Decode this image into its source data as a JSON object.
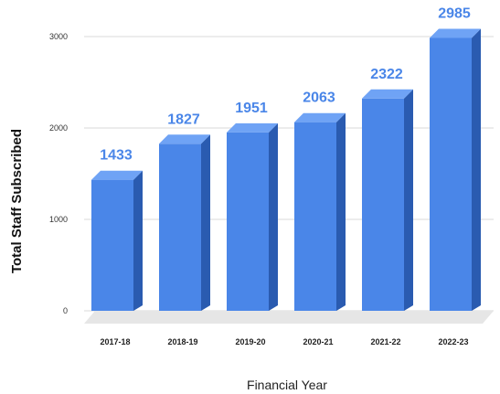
{
  "chart_data": {
    "type": "bar",
    "categories": [
      "2017-18",
      "2018-19",
      "2019-20",
      "2020-21",
      "2021-22",
      "2022-23"
    ],
    "values": [
      1433,
      1827,
      1951,
      2063,
      2322,
      2985
    ],
    "xlabel": "Financial Year",
    "ylabel": "Total Staff Subscribed",
    "ylim": [
      0,
      3000
    ],
    "yticks": [
      0,
      1000,
      2000,
      3000
    ],
    "grid": true,
    "legend": "none",
    "bar_style": "3d",
    "colors": {
      "bar_front": "#4a86e8",
      "bar_top": "#6fa3f5",
      "bar_side": "#2a5bb0",
      "data_label": "#4a86e8",
      "floor": "#e6e6e6"
    }
  }
}
